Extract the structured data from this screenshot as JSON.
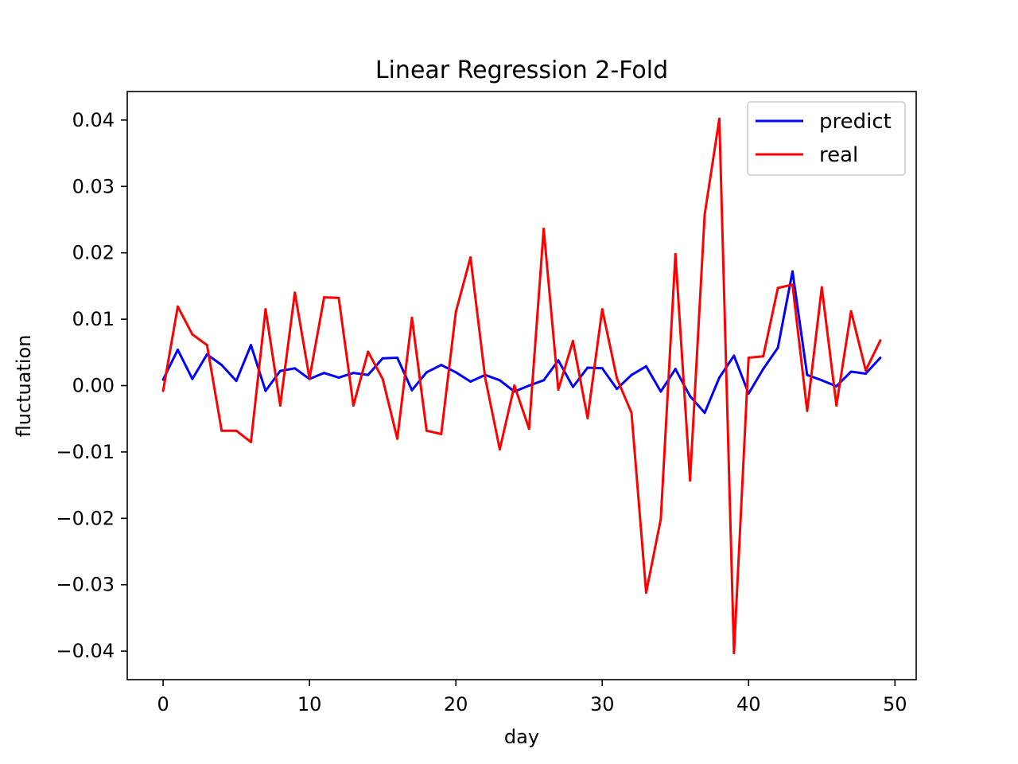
{
  "chart_data": {
    "type": "line",
    "title": "Linear Regression 2-Fold",
    "xlabel": "day",
    "ylabel": "fluctuation",
    "xlim": [
      -2.45,
      51.45
    ],
    "ylim": [
      -0.0443,
      0.0443
    ],
    "x_ticks": [
      0,
      10,
      20,
      30,
      40,
      50
    ],
    "x_tick_labels": [
      "0",
      "10",
      "20",
      "30",
      "40",
      "50"
    ],
    "y_ticks": [
      0.04,
      0.03,
      0.02,
      0.01,
      0.0,
      -0.01,
      -0.02,
      -0.03,
      -0.04
    ],
    "y_tick_labels": [
      "0.04",
      "0.03",
      "0.02",
      "0.01",
      "0.00",
      "−0.01",
      "−0.02",
      "−0.03",
      "−0.04"
    ],
    "grid": false,
    "legend_position": "top-right",
    "x": [
      0,
      1,
      2,
      3,
      4,
      5,
      6,
      7,
      8,
      9,
      10,
      11,
      12,
      13,
      14,
      15,
      16,
      17,
      18,
      19,
      20,
      21,
      22,
      23,
      24,
      25,
      26,
      27,
      28,
      29,
      30,
      31,
      32,
      33,
      34,
      35,
      36,
      37,
      38,
      39,
      40,
      41,
      42,
      43,
      44,
      45,
      46,
      47,
      48,
      49
    ],
    "series": [
      {
        "name": "predict",
        "color": "#0000ff",
        "values": [
          0.0009,
          0.0054,
          0.001,
          0.0047,
          0.0031,
          0.0007,
          0.0061,
          -0.0008,
          0.0022,
          0.0026,
          0.001,
          0.0019,
          0.0012,
          0.0019,
          0.0016,
          0.0041,
          0.0042,
          -0.0007,
          0.002,
          0.0031,
          0.002,
          0.0006,
          0.0016,
          0.0008,
          -0.0009,
          0.0,
          0.0008,
          0.0038,
          -0.0002,
          0.0027,
          0.0026,
          -0.0005,
          0.0016,
          0.0029,
          -0.0009,
          0.0025,
          -0.0016,
          -0.0041,
          0.0012,
          0.0045,
          -0.0012,
          0.0025,
          0.0057,
          0.0172,
          0.0016,
          0.0008,
          -0.0001,
          0.0021,
          0.0018,
          0.0042
        ]
      },
      {
        "name": "real",
        "color": "#ff0000",
        "values": [
          -0.0008,
          0.0119,
          0.0077,
          0.0061,
          -0.0068,
          -0.0068,
          -0.0085,
          0.0115,
          -0.003,
          0.014,
          0.0011,
          0.0133,
          0.0132,
          -0.003,
          0.0051,
          0.001,
          -0.008,
          0.0102,
          -0.0068,
          -0.0073,
          0.0111,
          0.0193,
          0.0012,
          -0.0096,
          0.0,
          -0.0065,
          0.0236,
          -0.0006,
          0.0067,
          -0.0049,
          0.0115,
          0.0011,
          -0.0041,
          -0.0312,
          -0.0201,
          0.0198,
          -0.0143,
          0.0258,
          0.0402,
          -0.0403,
          0.0042,
          0.0044,
          0.0147,
          0.0152,
          -0.0038,
          0.0148,
          -0.003,
          0.0112,
          0.0023,
          0.0068
        ]
      }
    ]
  }
}
